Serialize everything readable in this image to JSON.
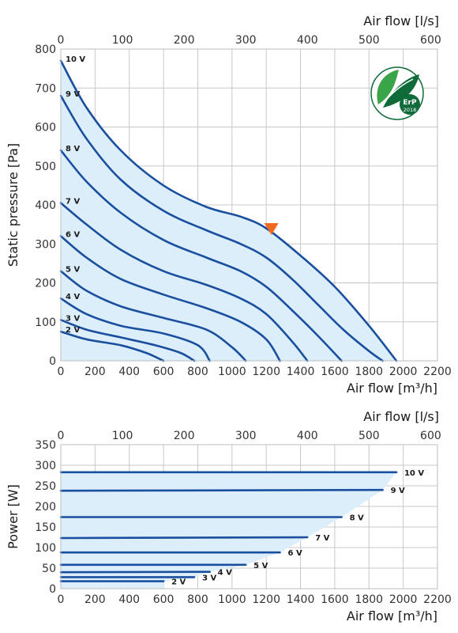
{
  "colors": {
    "curve": "#1a4fa0",
    "envelope": "#dceef9",
    "grid": "#c8c8c8",
    "marker": "#f26a21",
    "badge": "#0f6b3a"
  },
  "badge": {
    "icon": "leaf-icon",
    "line1": "ErP",
    "line2": "2018"
  },
  "chart_data": [
    {
      "type": "line",
      "ylabel": "Static pressure [Pa]",
      "xlabel_bottom": "Air flow [m³/h]",
      "xlabel_top": "Air flow [l/s]",
      "xlim": [
        0,
        2200
      ],
      "ylim": [
        0,
        800
      ],
      "x_ticks": [
        0,
        200,
        400,
        600,
        800,
        1000,
        1200,
        1400,
        1600,
        1800,
        2000,
        2200
      ],
      "y_ticks": [
        0,
        100,
        200,
        300,
        400,
        500,
        600,
        700,
        800
      ],
      "x_top_ticks": [
        0,
        100,
        200,
        300,
        400,
        500,
        600
      ],
      "x_top_lim": [
        0,
        611
      ],
      "grid": true,
      "marker_point": {
        "x": 1230,
        "y": 335
      },
      "series": [
        {
          "name": "10 V",
          "x": [
            0,
            150,
            350,
            600,
            850,
            1050,
            1200,
            1400,
            1600,
            1800,
            1960
          ],
          "y": [
            770,
            650,
            540,
            450,
            395,
            370,
            340,
            270,
            190,
            90,
            0
          ]
        },
        {
          "name": "9 V",
          "x": [
            0,
            150,
            350,
            600,
            850,
            1050,
            1200,
            1350,
            1500,
            1650,
            1800,
            1880
          ],
          "y": [
            680,
            570,
            465,
            385,
            335,
            300,
            265,
            210,
            145,
            80,
            25,
            0
          ]
        },
        {
          "name": "8 V",
          "x": [
            0,
            150,
            350,
            600,
            850,
            1050,
            1200,
            1350,
            1500,
            1640
          ],
          "y": [
            540,
            460,
            380,
            310,
            265,
            230,
            190,
            130,
            65,
            0
          ]
        },
        {
          "name": "7 V",
          "x": [
            0,
            150,
            350,
            600,
            850,
            1050,
            1200,
            1350,
            1440
          ],
          "y": [
            405,
            350,
            285,
            230,
            195,
            160,
            120,
            50,
            0
          ]
        },
        {
          "name": "6 V",
          "x": [
            0,
            150,
            350,
            600,
            850,
            1050,
            1200,
            1280
          ],
          "y": [
            320,
            265,
            210,
            170,
            135,
            100,
            55,
            0
          ]
        },
        {
          "name": "5 V",
          "x": [
            0,
            150,
            350,
            600,
            850,
            1000,
            1080
          ],
          "y": [
            230,
            180,
            140,
            110,
            80,
            35,
            0
          ]
        },
        {
          "name": "4 V",
          "x": [
            0,
            150,
            350,
            600,
            800,
            870
          ],
          "y": [
            160,
            120,
            90,
            70,
            40,
            0
          ]
        },
        {
          "name": "3 V",
          "x": [
            0,
            150,
            350,
            550,
            700,
            780
          ],
          "y": [
            105,
            80,
            60,
            40,
            20,
            0
          ]
        },
        {
          "name": "2 V",
          "x": [
            0,
            150,
            350,
            500,
            600
          ],
          "y": [
            75,
            55,
            40,
            20,
            0
          ]
        }
      ]
    },
    {
      "type": "line",
      "ylabel": "Power [W]",
      "xlabel_bottom": "Air flow [m³/h]",
      "xlabel_top": "Air flow [l/s]",
      "xlim": [
        0,
        2200
      ],
      "ylim": [
        0,
        350
      ],
      "x_ticks": [
        0,
        200,
        400,
        600,
        800,
        1000,
        1200,
        1400,
        1600,
        1800,
        2000,
        2200
      ],
      "y_ticks": [
        0,
        50,
        100,
        150,
        200,
        250,
        300,
        350
      ],
      "x_top_ticks": [
        0,
        100,
        200,
        300,
        400,
        500,
        600
      ],
      "x_top_lim": [
        0,
        611
      ],
      "grid": true,
      "series": [
        {
          "name": "10 V",
          "x": [
            0,
            1960
          ],
          "y": [
            283,
            283
          ]
        },
        {
          "name": "9 V",
          "x": [
            0,
            1880
          ],
          "y": [
            238,
            240
          ]
        },
        {
          "name": "8 V",
          "x": [
            0,
            1640
          ],
          "y": [
            174,
            174
          ]
        },
        {
          "name": "7 V",
          "x": [
            0,
            1440
          ],
          "y": [
            123,
            125
          ]
        },
        {
          "name": "6 V",
          "x": [
            0,
            1280
          ],
          "y": [
            88,
            88
          ]
        },
        {
          "name": "5 V",
          "x": [
            0,
            1080
          ],
          "y": [
            58,
            58
          ]
        },
        {
          "name": "4 V",
          "x": [
            0,
            870
          ],
          "y": [
            40,
            41
          ]
        },
        {
          "name": "3 V",
          "x": [
            0,
            780
          ],
          "y": [
            28,
            28
          ]
        },
        {
          "name": "2 V",
          "x": [
            0,
            600
          ],
          "y": [
            18,
            18
          ]
        }
      ]
    }
  ]
}
